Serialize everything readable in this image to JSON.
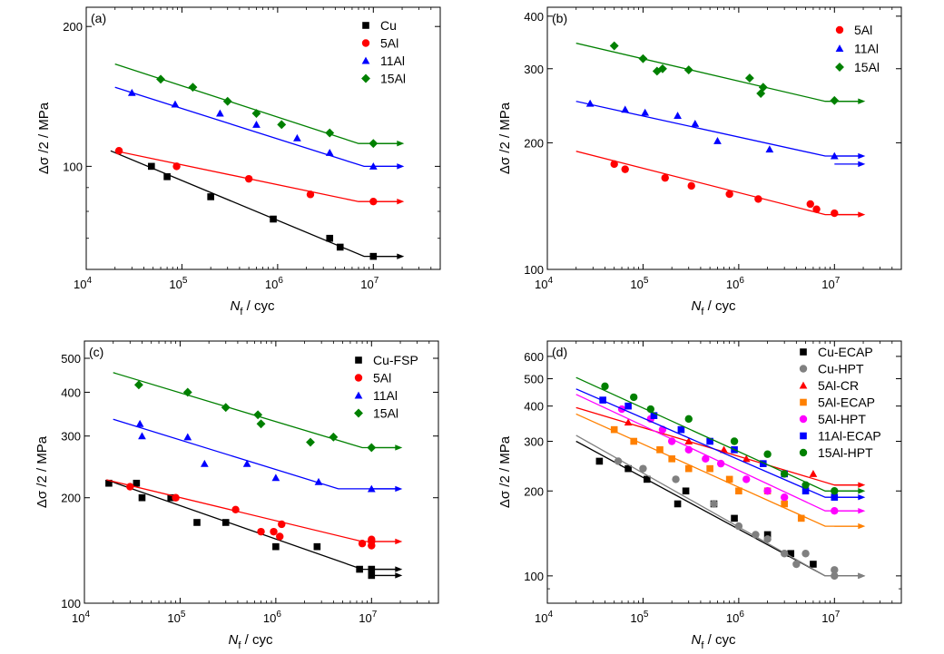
{
  "chart_data": [
    {
      "panel": "(a)",
      "type": "scatter",
      "xscale": "log",
      "yscale": "log",
      "xlim": [
        10000,
        50000000
      ],
      "ylim": [
        60,
        220
      ],
      "xticks": [
        {
          "v": 10000,
          "m": "10",
          "e": "4"
        },
        {
          "v": 100000,
          "m": "10",
          "e": "5"
        },
        {
          "v": 1000000,
          "m": "10",
          "e": "6"
        },
        {
          "v": 10000000,
          "m": "10",
          "e": "7"
        }
      ],
      "yticks": [
        {
          "v": 100,
          "t": "100"
        },
        {
          "v": 200,
          "t": "200"
        }
      ],
      "xlabel": {
        "sym": "N",
        "sub": "f",
        "rest": " / cyc"
      },
      "ylabel": "Δσ /2 / MPa",
      "legend_position": "top-right",
      "series": [
        {
          "name": "Cu",
          "color": "#000000",
          "marker": "square",
          "x": [
            48000,
            70000,
            200000,
            900000,
            3500000,
            4500000,
            10000000
          ],
          "y": [
            100,
            95,
            86,
            77,
            70,
            67,
            64
          ],
          "fit": {
            "x": [
              18000,
              8000000,
              20000000
            ],
            "y": [
              108,
              64,
              64
            ]
          },
          "runout": [
            {
              "x": 10000000,
              "y": 64
            }
          ]
        },
        {
          "name": "5Al",
          "color": "#ff0000",
          "marker": "circle",
          "x": [
            22000,
            88000,
            500000,
            2200000,
            10000000
          ],
          "y": [
            108,
            100,
            94,
            87,
            84
          ],
          "fit": {
            "x": [
              20000,
              7000000,
              20000000
            ],
            "y": [
              108,
              84,
              84
            ]
          },
          "runout": [
            {
              "x": 10000000,
              "y": 84
            }
          ]
        },
        {
          "name": "11Al",
          "color": "#0000ff",
          "marker": "triangle",
          "x": [
            30000,
            85000,
            250000,
            600000,
            1600000,
            3500000,
            10000000
          ],
          "y": [
            144,
            136,
            130,
            123,
            115,
            107,
            100
          ],
          "fit": {
            "x": [
              20000,
              8000000,
              20000000
            ],
            "y": [
              148,
              100,
              100
            ]
          },
          "runout": [
            {
              "x": 10000000,
              "y": 100
            }
          ]
        },
        {
          "name": "15Al",
          "color": "#008000",
          "marker": "diamond",
          "x": [
            60000,
            130000,
            300000,
            600000,
            1100000,
            3500000,
            10000000
          ],
          "y": [
            154,
            148,
            138,
            130,
            123,
            118,
            112
          ],
          "fit": {
            "x": [
              20000,
              7000000,
              20000000
            ],
            "y": [
              166,
              112,
              112
            ]
          },
          "runout": [
            {
              "x": 10000000,
              "y": 112
            }
          ]
        }
      ]
    },
    {
      "panel": "(b)",
      "type": "scatter",
      "xscale": "log",
      "yscale": "log",
      "xlim": [
        10000,
        50000000
      ],
      "ylim": [
        100,
        420
      ],
      "xticks": [
        {
          "v": 10000,
          "m": "10",
          "e": "4"
        },
        {
          "v": 100000,
          "m": "10",
          "e": "5"
        },
        {
          "v": 1000000,
          "m": "10",
          "e": "6"
        },
        {
          "v": 10000000,
          "m": "10",
          "e": "7"
        }
      ],
      "yticks": [
        {
          "v": 100,
          "t": "100"
        },
        {
          "v": 200,
          "t": "200"
        },
        {
          "v": 300,
          "t": "300"
        },
        {
          "v": 400,
          "t": "400"
        }
      ],
      "xlabel": {
        "sym": "N",
        "sub": "f",
        "rest": " / cyc"
      },
      "ylabel": "Δσ /2 / MPa",
      "legend_position": "top-right",
      "series": [
        {
          "name": "5Al",
          "color": "#ff0000",
          "marker": "circle",
          "x": [
            50000,
            65000,
            170000,
            320000,
            800000,
            1600000,
            5600000,
            6500000,
            10000000
          ],
          "y": [
            178,
            173,
            165,
            158,
            151,
            147,
            143,
            139,
            136
          ],
          "fit": {
            "x": [
              20000,
              8000000,
              20000000
            ],
            "y": [
              191,
              135,
              135
            ]
          },
          "runout": [
            {
              "x": 10000000,
              "y": 135
            }
          ]
        },
        {
          "name": "11Al",
          "color": "#0000ff",
          "marker": "triangle",
          "x": [
            28000,
            65000,
            105000,
            230000,
            350000,
            600000,
            2100000,
            10000000
          ],
          "y": [
            248,
            240,
            236,
            232,
            222,
            202,
            193,
            186
          ],
          "fit": {
            "x": [
              20000,
              8000000,
              20000000
            ],
            "y": [
              251,
              186,
              186
            ]
          },
          "runout": [
            {
              "x": 10000000,
              "y": 186
            },
            {
              "x": 10000000,
              "y": 178
            }
          ]
        },
        {
          "name": "15Al",
          "color": "#008000",
          "marker": "diamond",
          "x": [
            50000,
            100000,
            140000,
            160000,
            300000,
            1300000,
            1700000,
            1800000,
            10000000
          ],
          "y": [
            340,
            317,
            296,
            300,
            298,
            285,
            262,
            271,
            252
          ],
          "fit": {
            "x": [
              20000,
              8000000,
              20000000
            ],
            "y": [
              345,
              251,
              251
            ]
          },
          "runout": [
            {
              "x": 10000000,
              "y": 251
            }
          ]
        }
      ]
    },
    {
      "panel": "(c)",
      "type": "scatter",
      "xscale": "log",
      "yscale": "log",
      "xlim": [
        10000,
        50000000
      ],
      "ylim": [
        100,
        560
      ],
      "xticks": [
        {
          "v": 10000,
          "m": "10",
          "e": "4"
        },
        {
          "v": 100000,
          "m": "10",
          "e": "5"
        },
        {
          "v": 1000000,
          "m": "10",
          "e": "6"
        },
        {
          "v": 10000000,
          "m": "10",
          "e": "7"
        }
      ],
      "yticks": [
        {
          "v": 100,
          "t": "100"
        },
        {
          "v": 200,
          "t": "200"
        },
        {
          "v": 300,
          "t": "300"
        },
        {
          "v": 400,
          "t": "400"
        },
        {
          "v": 500,
          "t": "500"
        }
      ],
      "xlabel": {
        "sym": "N",
        "sub": "f",
        "rest": " / cyc"
      },
      "ylabel": "Δσ /2 / MPa",
      "legend_position": "top-right",
      "series": [
        {
          "name": "Cu-FSP",
          "color": "#000000",
          "marker": "square",
          "x": [
            18000,
            35000,
            40000,
            80000,
            150000,
            300000,
            1000000,
            2700000,
            7500000,
            10000000,
            10000000
          ],
          "y": [
            220,
            220,
            200,
            200,
            170,
            170,
            145,
            145,
            125,
            125,
            120
          ],
          "fit": {
            "x": [
              17000,
              8000000,
              20000000
            ],
            "y": [
              225,
              125,
              125
            ]
          },
          "runout": [
            {
              "x": 10000000,
              "y": 125
            },
            {
              "x": 10000000,
              "y": 120
            }
          ]
        },
        {
          "name": "5Al",
          "color": "#ff0000",
          "marker": "circle",
          "x": [
            30000,
            90000,
            380000,
            700000,
            950000,
            1100000,
            1150000,
            8000000,
            10000000,
            10000000,
            10000000
          ],
          "y": [
            215,
            200,
            185,
            160,
            160,
            155,
            168,
            148,
            150,
            146,
            152
          ],
          "fit": {
            "x": [
              17000,
              8000000,
              20000000
            ],
            "y": [
              225,
              150,
              150
            ]
          },
          "runout": [
            {
              "x": 10000000,
              "y": 150
            }
          ]
        },
        {
          "name": "11Al",
          "color": "#0000ff",
          "marker": "triangle",
          "x": [
            38000,
            40000,
            120000,
            180000,
            500000,
            1000000,
            2800000,
            10000000
          ],
          "y": [
            325,
            300,
            298,
            250,
            250,
            228,
            222,
            212
          ],
          "fit": {
            "x": [
              20000,
              4500000,
              20000000
            ],
            "y": [
              335,
              212,
              212
            ]
          },
          "runout": [
            {
              "x": 10000000,
              "y": 212
            }
          ]
        },
        {
          "name": "15Al",
          "color": "#008000",
          "marker": "diamond",
          "x": [
            37000,
            120000,
            300000,
            650000,
            700000,
            2300000,
            4000000,
            10000000
          ],
          "y": [
            420,
            400,
            362,
            345,
            325,
            288,
            298,
            278
          ],
          "fit": {
            "x": [
              20000,
              8000000,
              20000000
            ],
            "y": [
              455,
              278,
              278
            ]
          },
          "runout": [
            {
              "x": 10000000,
              "y": 278
            }
          ]
        }
      ]
    },
    {
      "panel": "(d)",
      "type": "scatter",
      "xscale": "log",
      "yscale": "log",
      "xlim": [
        10000,
        50000000
      ],
      "ylim": [
        80,
        680
      ],
      "xticks": [
        {
          "v": 10000,
          "m": "10",
          "e": "4"
        },
        {
          "v": 100000,
          "m": "10",
          "e": "5"
        },
        {
          "v": 1000000,
          "m": "10",
          "e": "6"
        },
        {
          "v": 10000000,
          "m": "10",
          "e": "7"
        }
      ],
      "yticks": [
        {
          "v": 100,
          "t": "100"
        },
        {
          "v": 200,
          "t": "200"
        },
        {
          "v": 300,
          "t": "300"
        },
        {
          "v": 400,
          "t": "400"
        },
        {
          "v": 500,
          "t": "500"
        },
        {
          "v": 600,
          "t": "600"
        }
      ],
      "xlabel": {
        "sym": "N",
        "sub": "f",
        "rest": " / cyc"
      },
      "ylabel": "Δσ /2 / MPa",
      "legend_position": "top-right",
      "series": [
        {
          "name": "Cu-ECAP",
          "color": "#000000",
          "marker": "square",
          "x": [
            35000,
            70000,
            110000,
            230000,
            280000,
            550000,
            900000,
            2000000,
            3500000,
            6000000
          ],
          "y": [
            255,
            240,
            220,
            180,
            200,
            180,
            160,
            140,
            120,
            110
          ],
          "fit": {
            "x": [
              20000,
              8000000,
              20000000
            ],
            "y": [
              300,
              100,
              100
            ]
          },
          "runout": [
            {
              "x": 10000000,
              "y": 100
            }
          ]
        },
        {
          "name": "Cu-HPT",
          "color": "#808080",
          "marker": "circle",
          "x": [
            55000,
            100000,
            220000,
            550000,
            1000000,
            1500000,
            2000000,
            3000000,
            4000000,
            5000000,
            10000000,
            10000000
          ],
          "y": [
            255,
            240,
            220,
            180,
            150,
            140,
            135,
            120,
            110,
            120,
            105,
            100
          ],
          "fit": {
            "x": [
              20000,
              8000000,
              20000000
            ],
            "y": [
              315,
              100,
              100
            ]
          },
          "runout": [
            {
              "x": 10000000,
              "y": 100
            }
          ]
        },
        {
          "name": "5Al-CR",
          "color": "#ff0000",
          "marker": "triangle",
          "x": [
            70000,
            300000,
            700000,
            1200000,
            6000000
          ],
          "y": [
            350,
            300,
            280,
            260,
            230
          ],
          "fit": {
            "x": [
              20000,
              10000000,
              20000000
            ],
            "y": [
              395,
              210,
              210
            ]
          },
          "runout": [
            {
              "x": 10000000,
              "y": 210
            }
          ]
        },
        {
          "name": "5Al-ECAP",
          "color": "#ff8000",
          "marker": "square",
          "x": [
            50000,
            80000,
            150000,
            200000,
            300000,
            500000,
            800000,
            1000000,
            2000000,
            3000000,
            4500000
          ],
          "y": [
            330,
            300,
            280,
            260,
            240,
            240,
            220,
            200,
            200,
            180,
            160
          ],
          "fit": {
            "x": [
              20000,
              8000000,
              20000000
            ],
            "y": [
              375,
              150,
              150
            ]
          },
          "runout": [
            {
              "x": 10000000,
              "y": 150
            }
          ]
        },
        {
          "name": "5Al-HPT",
          "color": "#ff00ff",
          "marker": "circle",
          "x": [
            60000,
            120000,
            160000,
            200000,
            300000,
            450000,
            650000,
            1200000,
            2000000,
            3000000,
            10000000
          ],
          "y": [
            390,
            360,
            330,
            300,
            280,
            260,
            250,
            220,
            200,
            190,
            170
          ],
          "fit": {
            "x": [
              20000,
              8000000,
              20000000
            ],
            "y": [
              440,
              170,
              170
            ]
          },
          "runout": [
            {
              "x": 10000000,
              "y": 170
            }
          ]
        },
        {
          "name": "11Al-ECAP",
          "color": "#0000ff",
          "marker": "square",
          "x": [
            38000,
            70000,
            130000,
            250000,
            500000,
            900000,
            1800000,
            3000000,
            5000000,
            10000000
          ],
          "y": [
            420,
            400,
            370,
            330,
            300,
            280,
            250,
            230,
            200,
            190
          ],
          "fit": {
            "x": [
              20000,
              8000000,
              20000000
            ],
            "y": [
              460,
              190,
              190
            ]
          },
          "runout": [
            {
              "x": 10000000,
              "y": 190
            }
          ]
        },
        {
          "name": "15Al-HPT",
          "color": "#008000",
          "marker": "circle",
          "x": [
            40000,
            80000,
            120000,
            300000,
            900000,
            2000000,
            3000000,
            5000000,
            10000000
          ],
          "y": [
            470,
            430,
            390,
            360,
            300,
            270,
            230,
            210,
            200
          ],
          "fit": {
            "x": [
              20000,
              8000000,
              20000000
            ],
            "y": [
              505,
              200,
              200
            ]
          },
          "runout": [
            {
              "x": 10000000,
              "y": 200
            }
          ]
        }
      ]
    }
  ]
}
